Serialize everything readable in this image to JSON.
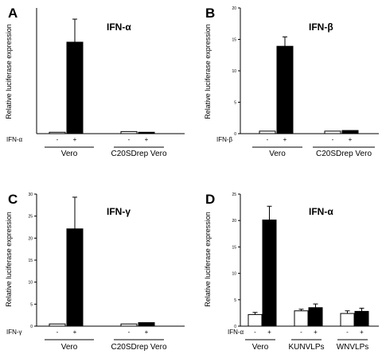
{
  "figure": {
    "panels": [
      {
        "letter": "A",
        "title": "IFN-α"
      },
      {
        "letter": "B",
        "title": "IFN-β"
      },
      {
        "letter": "C",
        "title": "IFN-γ"
      },
      {
        "letter": "D",
        "title": "IFN-α"
      }
    ]
  },
  "chart_data": [
    {
      "type": "bar",
      "panel": "A",
      "title": "IFN-α",
      "ylabel": "Relative luciferase expression",
      "yticks": [],
      "ylim": [
        0,
        36
      ],
      "treatment_label": "IFN-α",
      "treatment_signs": [
        "-",
        "+",
        "-",
        "+"
      ],
      "groups": [
        "Vero",
        "C20SDrep Vero"
      ],
      "categories": [
        "Vero -",
        "Vero +",
        "C20SDrep Vero -",
        "C20SDrep Vero +"
      ],
      "values": [
        0.4,
        26.2,
        0.6,
        0.4
      ],
      "errors": [
        0,
        6.6,
        0,
        0
      ],
      "fills": [
        "#ffffff",
        "#000000",
        "#ffffff",
        "#000000"
      ]
    },
    {
      "type": "bar",
      "panel": "B",
      "title": "IFN-β",
      "ylabel": "Relative luciferase expression",
      "yticks": [
        "0",
        "5",
        "10",
        "15",
        "20"
      ],
      "ylim": [
        0,
        20
      ],
      "treatment_label": "IFN-β",
      "treatment_signs": [
        "-",
        "+",
        "-",
        "+"
      ],
      "groups": [
        "Vero",
        "C20SDrep Vero"
      ],
      "categories": [
        "Vero -",
        "Vero +",
        "C20SDrep Vero -",
        "C20SDrep Vero +"
      ],
      "values": [
        0.4,
        13.9,
        0.4,
        0.5
      ],
      "errors": [
        0,
        1.5,
        0,
        0
      ],
      "fills": [
        "#ffffff",
        "#000000",
        "#ffffff",
        "#000000"
      ]
    },
    {
      "type": "bar",
      "panel": "C",
      "title": "IFN-γ",
      "ylabel": "Relative luciferase expression",
      "yticks": [
        "0",
        "5",
        "10",
        "15",
        "20",
        "25",
        "30"
      ],
      "ylim": [
        0,
        30
      ],
      "treatment_label": "IFN-γ",
      "treatment_signs": [
        "-",
        "+",
        "-",
        "+"
      ],
      "groups": [
        "Vero",
        "C20SDrep Vero"
      ],
      "categories": [
        "Vero -",
        "Vero +",
        "C20SDrep Vero -",
        "C20SDrep Vero +"
      ],
      "values": [
        0.5,
        22.1,
        0.5,
        0.8
      ],
      "errors": [
        0,
        7.2,
        0,
        0
      ],
      "fills": [
        "#ffffff",
        "#000000",
        "#ffffff",
        "#000000"
      ]
    },
    {
      "type": "bar",
      "panel": "D",
      "title": "IFN-α",
      "ylabel": "Relative luciferase expression",
      "yticks": [
        "0",
        "5",
        "10",
        "15",
        "20",
        "25"
      ],
      "ylim": [
        0,
        25
      ],
      "treatment_label": "IFN-α",
      "treatment_signs": [
        "-",
        "+",
        "-",
        "+",
        "-",
        "+"
      ],
      "groups": [
        "Vero",
        "KUNVLPs",
        "WNVLPs"
      ],
      "categories": [
        "Vero -",
        "Vero +",
        "KUNVLPs -",
        "KUNVLPs +",
        "WNVLPs -",
        "WNVLPs +"
      ],
      "values": [
        2.2,
        20.1,
        2.9,
        3.5,
        2.4,
        2.8
      ],
      "errors": [
        0.4,
        2.6,
        0.3,
        0.7,
        0.5,
        0.6
      ],
      "fills": [
        "#ffffff",
        "#000000",
        "#ffffff",
        "#000000",
        "#ffffff",
        "#000000"
      ]
    }
  ]
}
